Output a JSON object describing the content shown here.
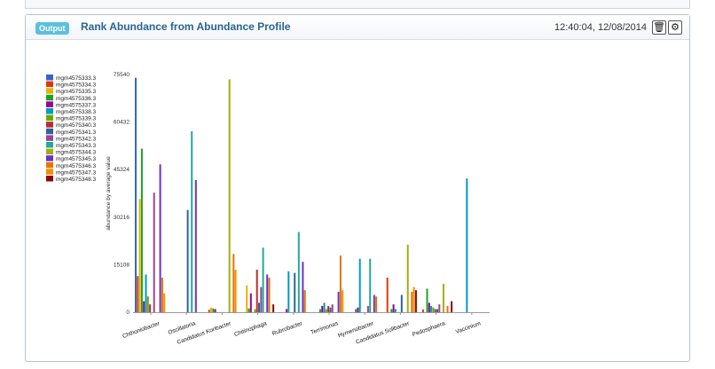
{
  "panel": {
    "badge": "Output",
    "title": "Rank Abundance from Abundance Profile",
    "timestamp": "12:40:04, 12/08/2014"
  },
  "icons": {
    "trash": "trash-icon",
    "settings": "gear-icon"
  },
  "chart_data": {
    "type": "bar",
    "ylabel": "abundance by average value",
    "ylim": [
      0,
      75540
    ],
    "yticks": [
      0,
      15108,
      30216,
      45324,
      60432,
      75540
    ],
    "grid": false,
    "legend_position": "left",
    "categories": [
      "Chthoniobacter",
      "Oscillatoria",
      "Candidatus Koribacter",
      "Chitinophaga",
      "Rubrobacter",
      "Terrimonas",
      "Hymenobacter",
      "Candidatus Solibacter",
      "Pedosphaera",
      "Vaccinium"
    ],
    "series": [
      {
        "name": "mgm4575333.3",
        "color": "#3366cc",
        "values": [
          74500,
          0,
          0,
          0,
          0,
          0,
          0,
          0,
          0,
          0
        ]
      },
      {
        "name": "mgm4575334.3",
        "color": "#dc3912",
        "values": [
          11500,
          0,
          800,
          0,
          0,
          0,
          0,
          11000,
          900,
          0
        ]
      },
      {
        "name": "mgm4575335.3",
        "color": "#e5b400",
        "values": [
          36000,
          0,
          1500,
          8500,
          0,
          0,
          0,
          0,
          0,
          0
        ]
      },
      {
        "name": "mgm4575336.3",
        "color": "#20a020",
        "values": [
          52000,
          0,
          1200,
          1200,
          0,
          1000,
          1000,
          1000,
          7500,
          0
        ]
      },
      {
        "name": "mgm4575337.3",
        "color": "#990099",
        "values": [
          3500,
          0,
          1000,
          6000,
          1000,
          2000,
          1500,
          2500,
          3000,
          0
        ]
      },
      {
        "name": "mgm4575338.3",
        "color": "#0099c6",
        "values": [
          12000,
          0,
          0,
          0,
          13000,
          3000,
          17000,
          1000,
          2000,
          42500
        ]
      },
      {
        "name": "mgm4575339.3",
        "color": "#66aa00",
        "values": [
          5000,
          0,
          0,
          1000,
          0,
          1000,
          0,
          0,
          1500,
          0
        ]
      },
      {
        "name": "mgm4575340.3",
        "color": "#b82e2e",
        "values": [
          2500,
          0,
          0,
          13500,
          0,
          2000,
          0,
          0,
          1000,
          0
        ]
      },
      {
        "name": "mgm4575341.3",
        "color": "#316395",
        "values": [
          0,
          32500,
          0,
          3000,
          12500,
          1500,
          0,
          5500,
          1000,
          0
        ]
      },
      {
        "name": "mgm4575342.3",
        "color": "#994499",
        "values": [
          38000,
          0,
          0,
          8000,
          0,
          2500,
          2000,
          0,
          2500,
          0
        ]
      },
      {
        "name": "mgm4575343.3",
        "color": "#22aa99",
        "values": [
          0,
          57500,
          0,
          20500,
          25500,
          0,
          17000,
          0,
          0,
          0
        ]
      },
      {
        "name": "mgm4575344.3",
        "color": "#aaaa11",
        "values": [
          0,
          0,
          74000,
          0,
          0,
          0,
          0,
          21500,
          9000,
          0
        ]
      },
      {
        "name": "mgm4575345.3",
        "color": "#6633cc",
        "values": [
          47000,
          42000,
          0,
          12000,
          16000,
          6500,
          5500,
          0,
          0,
          0
        ]
      },
      {
        "name": "mgm4575346.3",
        "color": "#e67300",
        "values": [
          11000,
          0,
          18500,
          11000,
          7000,
          18000,
          5000,
          6500,
          2000,
          0
        ]
      },
      {
        "name": "mgm4575347.3",
        "color": "#f09000",
        "values": [
          6000,
          0,
          13500,
          0,
          0,
          7000,
          0,
          8000,
          0,
          0
        ]
      },
      {
        "name": "mgm4575348.3",
        "color": "#8b0707",
        "values": [
          0,
          0,
          0,
          2500,
          0,
          0,
          0,
          7000,
          3500,
          0
        ]
      }
    ]
  }
}
